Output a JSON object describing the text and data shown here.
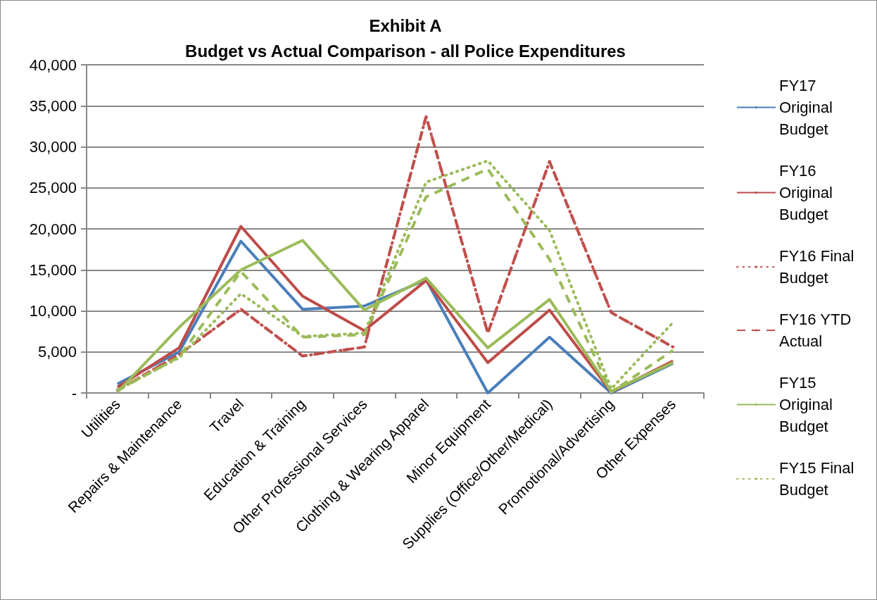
{
  "chart_data": {
    "type": "line",
    "title": "Exhibit A\nBudget vs Actual Comparison - all Police Expenditures",
    "categories": [
      "Utilities",
      "Repairs & Maintenance",
      "Travel",
      "Education & Training",
      "Other Professional Services",
      "Clothing & Wearing Apparel",
      "Minor Equipment",
      "Supplies (Office/Other/Medical)",
      "Promotional/Advertising",
      "Other Expenses"
    ],
    "series": [
      {
        "name": "FY17 Original Budget",
        "color": "#4a7ebb",
        "line_style": "solid",
        "values": [
          1100,
          5000,
          18500,
          10200,
          10600,
          13800,
          0,
          6800,
          0,
          3600
        ]
      },
      {
        "name": "FY16 Original Budget",
        "color": "#be4b48",
        "line_style": "solid",
        "values": [
          700,
          5500,
          20300,
          11800,
          7600,
          13700,
          3700,
          10100,
          100,
          3900
        ]
      },
      {
        "name": "FY16 Final Budget",
        "color": "#c0504d",
        "line_style": "dotted",
        "values": [
          300,
          4700,
          10200,
          4500,
          5600,
          33700,
          7300,
          28200,
          9800,
          5600
        ]
      },
      {
        "name": "FY16 YTD Actual",
        "color": "#c0504d",
        "line_style": "dashed",
        "values": [
          300,
          4700,
          10200,
          4500,
          5600,
          33700,
          7300,
          28200,
          9800,
          5600
        ]
      },
      {
        "name": "FY15 Original Budget",
        "color": "#9bbb59",
        "line_style": "solid",
        "values": [
          100,
          8000,
          15000,
          18600,
          10100,
          14000,
          5500,
          11400,
          200,
          3700
        ]
      },
      {
        "name": "FY15 Final Budget",
        "color": "#9bbb59",
        "line_style": "dotted",
        "values": [
          400,
          4300,
          12100,
          6900,
          7300,
          25700,
          28300,
          19800,
          500,
          8600
        ]
      },
      {
        "color": "#9bbb59",
        "line_style": "dashed",
        "values": [
          300,
          4400,
          14800,
          6800,
          7100,
          23900,
          27300,
          16300,
          100,
          5200
        ]
      }
    ],
    "ylim": [
      0,
      40000
    ],
    "yticks": [
      {
        "value": 0,
        "label": "-"
      },
      {
        "value": 5000,
        "label": "5,000"
      },
      {
        "value": 10000,
        "label": "10,000"
      },
      {
        "value": 15000,
        "label": "15,000"
      },
      {
        "value": 20000,
        "label": "20,000"
      },
      {
        "value": 25000,
        "label": "25,000"
      },
      {
        "value": 30000,
        "label": "30,000"
      },
      {
        "value": 35000,
        "label": "35,000"
      },
      {
        "value": 40000,
        "label": "40,000"
      }
    ],
    "grid": "y",
    "legend": "right",
    "marker": "none"
  }
}
